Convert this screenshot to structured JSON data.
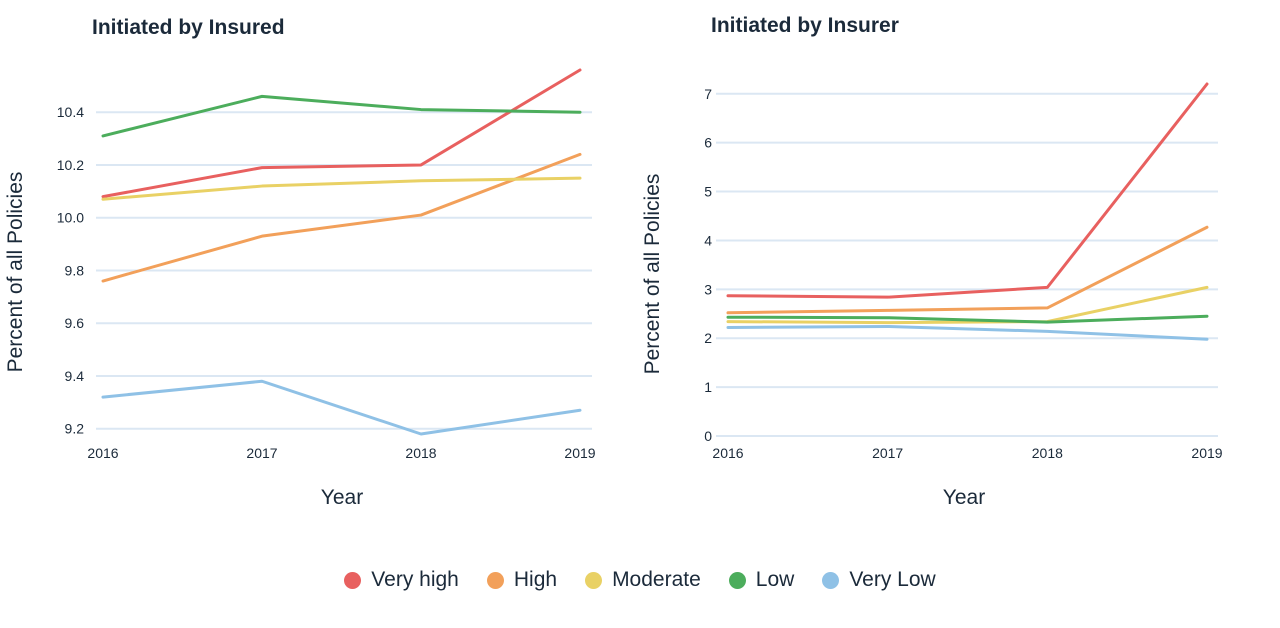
{
  "legend": [
    {
      "label": "Very high",
      "color": "#e8605f"
    },
    {
      "label": "High",
      "color": "#f2a05a"
    },
    {
      "label": "Moderate",
      "color": "#e9d165"
    },
    {
      "label": "Low",
      "color": "#4cad5c"
    },
    {
      "label": "Very Low",
      "color": "#8fc1e6"
    }
  ],
  "chart_data": [
    {
      "type": "line",
      "title": "Initiated by Insured",
      "xlabel": "Year",
      "ylabel": "Percent of all Policies",
      "categories": [
        "2016",
        "2017",
        "2018",
        "2019"
      ],
      "y_ticks": [
        "9.2",
        "9.4",
        "9.6",
        "9.8",
        "10.0",
        "10.2",
        "10.4"
      ],
      "y_tick_values": [
        9.2,
        9.4,
        9.6,
        9.8,
        10.0,
        10.2,
        10.4
      ],
      "ylim": [
        9.18,
        10.56
      ],
      "series": [
        {
          "name": "Very high",
          "values": [
            10.08,
            10.19,
            10.2,
            10.56
          ]
        },
        {
          "name": "High",
          "values": [
            9.76,
            9.93,
            10.01,
            10.24
          ]
        },
        {
          "name": "Moderate",
          "values": [
            10.07,
            10.12,
            10.14,
            10.15
          ]
        },
        {
          "name": "Low",
          "values": [
            10.31,
            10.46,
            10.41,
            10.4
          ]
        },
        {
          "name": "Very Low",
          "values": [
            9.32,
            9.38,
            9.18,
            9.27
          ]
        }
      ]
    },
    {
      "type": "line",
      "title": "Initiated by Insurer",
      "xlabel": "Year",
      "ylabel": "Percent of all Policies",
      "categories": [
        "2016",
        "2017",
        "2018",
        "2019"
      ],
      "y_ticks": [
        "0",
        "1",
        "2",
        "3",
        "4",
        "5",
        "6",
        "7"
      ],
      "y_tick_values": [
        0,
        1,
        2,
        3,
        4,
        5,
        6,
        7
      ],
      "ylim": [
        0,
        7.2
      ],
      "series": [
        {
          "name": "Very high",
          "values": [
            2.87,
            2.84,
            3.04,
            7.2
          ]
        },
        {
          "name": "High",
          "values": [
            2.52,
            2.57,
            2.62,
            4.27
          ]
        },
        {
          "name": "Moderate",
          "values": [
            2.34,
            2.32,
            2.34,
            3.04
          ]
        },
        {
          "name": "Low",
          "values": [
            2.43,
            2.42,
            2.33,
            2.45
          ]
        },
        {
          "name": "Very Low",
          "values": [
            2.22,
            2.24,
            2.14,
            1.98
          ]
        }
      ]
    }
  ]
}
